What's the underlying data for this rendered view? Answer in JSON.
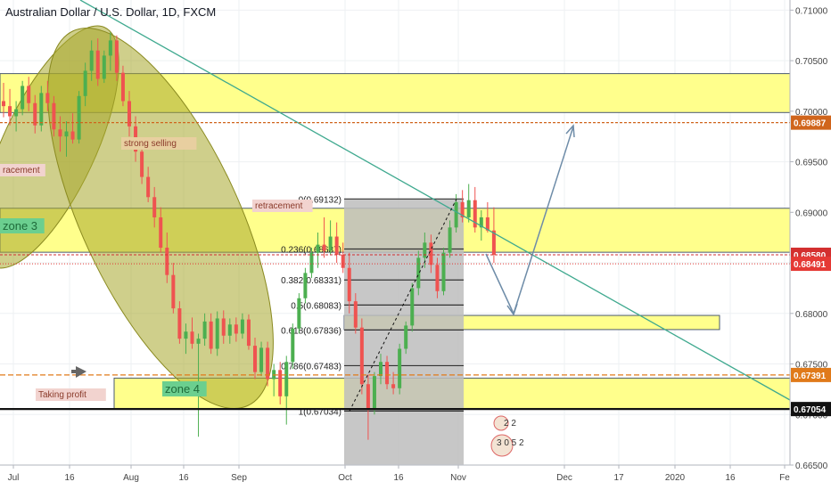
{
  "header": {
    "title": "Australian Dollar / U.S. Dollar, 1D, FXCM"
  },
  "chart_data": {
    "type": "candlestick",
    "title": "Australian Dollar / U.S. Dollar, 1D, FXCM",
    "ylim": [
      0.665,
      0.711
    ],
    "y_ticks": [
      "0.71000",
      "0.70500",
      "0.70000",
      "0.69500",
      "0.69000",
      "0.68500",
      "0.68000",
      "0.67500",
      "0.67000",
      "0.66500"
    ],
    "x_ticks": [
      "Jul",
      "16",
      "Aug",
      "16",
      "Sep",
      "Oct",
      "16",
      "Nov",
      "Dec",
      "17",
      "2020",
      "16",
      "Fe"
    ],
    "price_badges": [
      {
        "label": "0.69887",
        "value": 0.69887,
        "color": "#d0651c"
      },
      {
        "label": "0.68580",
        "value": 0.6858,
        "color": "#d32f2f"
      },
      {
        "label": "0.68491",
        "value": 0.68491,
        "color": "#e53935"
      },
      {
        "label": "0.67391",
        "value": 0.67391,
        "color": "#e07a1a"
      },
      {
        "label": "0.67054",
        "value": 0.67054,
        "color": "#111111"
      }
    ],
    "fib_levels": [
      {
        "label": "0(0.69132)",
        "value": 0.69132
      },
      {
        "label": "0.236(0.68637)",
        "value": 0.68637
      },
      {
        "label": "0.382(0.68331)",
        "value": 0.68331
      },
      {
        "label": "0.5(0.68083)",
        "value": 0.68083
      },
      {
        "label": "0.618(0.67836)",
        "value": 0.67836
      },
      {
        "label": "0.786(0.67483)",
        "value": 0.67483
      },
      {
        "label": "1(0.67034)",
        "value": 0.67034
      }
    ],
    "zones": [
      {
        "from": 0.69987,
        "to": 0.70372
      },
      {
        "from": 0.68605,
        "to": 0.6904
      },
      {
        "from": 0.6784,
        "to": 0.6798
      },
      {
        "from": 0.6706,
        "to": 0.6736
      }
    ],
    "annotations": [
      "strong selling",
      "retracement",
      "racement",
      "zone 3",
      "zone 4",
      "Taking profit"
    ],
    "event_icons": [
      "2 2",
      "3 0 5 2"
    ],
    "colors": {
      "up": "#4caf50",
      "down": "#ef5350",
      "zone": "#ffff8c",
      "ellipse": "#a7a72b",
      "trend": "#3fa98f",
      "arrow": "#6e8ca8"
    },
    "candles": [
      [
        0.701,
        0.7028,
        0.6994,
        0.7005
      ],
      [
        0.7005,
        0.7022,
        0.6986,
        0.6995
      ],
      [
        0.6995,
        0.701,
        0.698,
        0.7002
      ],
      [
        0.7002,
        0.703,
        0.6996,
        0.7025
      ],
      [
        0.7025,
        0.7034,
        0.7,
        0.7008
      ],
      [
        0.7008,
        0.7016,
        0.6978,
        0.6986
      ],
      [
        0.6986,
        0.7025,
        0.698,
        0.7018
      ],
      [
        0.7018,
        0.703,
        0.7,
        0.7008
      ],
      [
        0.7008,
        0.7015,
        0.6975,
        0.6982
      ],
      [
        0.6982,
        0.6995,
        0.696,
        0.6975
      ],
      [
        0.6975,
        0.699,
        0.6955,
        0.698
      ],
      [
        0.698,
        0.6998,
        0.6968,
        0.6972
      ],
      [
        0.6972,
        0.702,
        0.6968,
        0.7015
      ],
      [
        0.7015,
        0.7048,
        0.7005,
        0.704
      ],
      [
        0.704,
        0.707,
        0.703,
        0.706
      ],
      [
        0.706,
        0.7072,
        0.7025,
        0.7032
      ],
      [
        0.7032,
        0.706,
        0.7028,
        0.7055
      ],
      [
        0.7055,
        0.7078,
        0.704,
        0.707
      ],
      [
        0.707,
        0.7075,
        0.703,
        0.7038
      ],
      [
        0.7038,
        0.7045,
        0.7005,
        0.701
      ],
      [
        0.701,
        0.702,
        0.6975,
        0.6985
      ],
      [
        0.6985,
        0.6995,
        0.695,
        0.696
      ],
      [
        0.696,
        0.6968,
        0.6928,
        0.6935
      ],
      [
        0.6935,
        0.6945,
        0.691,
        0.6915
      ],
      [
        0.6915,
        0.6925,
        0.6885,
        0.6895
      ],
      [
        0.6895,
        0.6905,
        0.686,
        0.6865
      ],
      [
        0.6865,
        0.688,
        0.683,
        0.6838
      ],
      [
        0.6838,
        0.685,
        0.68,
        0.6805
      ],
      [
        0.6805,
        0.6812,
        0.677,
        0.6775
      ],
      [
        0.6775,
        0.679,
        0.676,
        0.6782
      ],
      [
        0.6782,
        0.6796,
        0.6765,
        0.677
      ],
      [
        0.677,
        0.678,
        0.6678,
        0.6775
      ],
      [
        0.6775,
        0.68,
        0.6768,
        0.6792
      ],
      [
        0.6792,
        0.68,
        0.676,
        0.6765
      ],
      [
        0.6765,
        0.6802,
        0.6758,
        0.6795
      ],
      [
        0.6795,
        0.6803,
        0.677,
        0.6778
      ],
      [
        0.6778,
        0.6795,
        0.677,
        0.6789
      ],
      [
        0.6789,
        0.6796,
        0.6772,
        0.678
      ],
      [
        0.678,
        0.68,
        0.6775,
        0.6794
      ],
      [
        0.6794,
        0.6799,
        0.6764,
        0.6768
      ],
      [
        0.6768,
        0.6776,
        0.6735,
        0.6742
      ],
      [
        0.6742,
        0.6772,
        0.6738,
        0.6766
      ],
      [
        0.6766,
        0.6772,
        0.6728,
        0.6735
      ],
      [
        0.6735,
        0.675,
        0.6718,
        0.6744
      ],
      [
        0.6744,
        0.6752,
        0.671,
        0.6718
      ],
      [
        0.6718,
        0.6758,
        0.669,
        0.6752
      ],
      [
        0.6752,
        0.679,
        0.6745,
        0.6785
      ],
      [
        0.6785,
        0.682,
        0.678,
        0.6815
      ],
      [
        0.6815,
        0.6845,
        0.681,
        0.684
      ],
      [
        0.684,
        0.6865,
        0.6835,
        0.686
      ],
      [
        0.686,
        0.688,
        0.6845,
        0.6868
      ],
      [
        0.6868,
        0.6895,
        0.6855,
        0.6862
      ],
      [
        0.6862,
        0.6892,
        0.6858,
        0.6876
      ],
      [
        0.6876,
        0.689,
        0.685,
        0.6858
      ],
      [
        0.6858,
        0.687,
        0.684,
        0.6845
      ],
      [
        0.6845,
        0.686,
        0.68,
        0.6812
      ],
      [
        0.6812,
        0.682,
        0.678,
        0.6786
      ],
      [
        0.6786,
        0.6795,
        0.672,
        0.673
      ],
      [
        0.673,
        0.674,
        0.6675,
        0.6705
      ],
      [
        0.6705,
        0.6742,
        0.67,
        0.6738
      ],
      [
        0.6738,
        0.676,
        0.673,
        0.6752
      ],
      [
        0.6752,
        0.6758,
        0.6725,
        0.673
      ],
      [
        0.673,
        0.6742,
        0.672,
        0.6726
      ],
      [
        0.6726,
        0.677,
        0.672,
        0.6765
      ],
      [
        0.6765,
        0.6792,
        0.676,
        0.6788
      ],
      [
        0.6788,
        0.683,
        0.6782,
        0.6825
      ],
      [
        0.6825,
        0.6862,
        0.6818,
        0.6855
      ],
      [
        0.6855,
        0.688,
        0.6845,
        0.687
      ],
      [
        0.687,
        0.6878,
        0.684,
        0.6848
      ],
      [
        0.6848,
        0.6855,
        0.6815,
        0.6822
      ],
      [
        0.6822,
        0.6865,
        0.6818,
        0.686
      ],
      [
        0.686,
        0.6892,
        0.6855,
        0.6885
      ],
      [
        0.6885,
        0.6918,
        0.688,
        0.691
      ],
      [
        0.691,
        0.6922,
        0.689,
        0.6895
      ],
      [
        0.6895,
        0.6928,
        0.689,
        0.6912
      ],
      [
        0.6912,
        0.6925,
        0.688,
        0.6885
      ],
      [
        0.6885,
        0.6902,
        0.6872,
        0.6895
      ],
      [
        0.6895,
        0.691,
        0.688,
        0.6882
      ],
      [
        0.6882,
        0.6905,
        0.685,
        0.6858
      ]
    ]
  }
}
